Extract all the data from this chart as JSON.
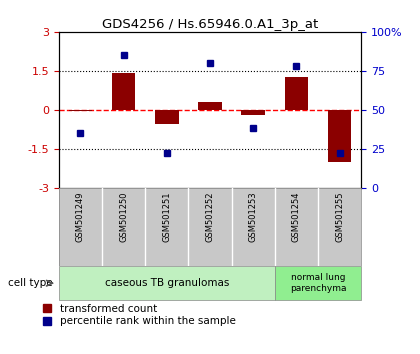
{
  "title": "GDS4256 / Hs.65946.0.A1_3p_at",
  "samples": [
    "GSM501249",
    "GSM501250",
    "GSM501251",
    "GSM501252",
    "GSM501253",
    "GSM501254",
    "GSM501255"
  ],
  "red_bars": [
    -0.05,
    1.4,
    -0.55,
    0.3,
    -0.2,
    1.25,
    -2.0
  ],
  "blue_dots": [
    35,
    85,
    22,
    80,
    38,
    78,
    22
  ],
  "ylim_left": [
    -3,
    3
  ],
  "ylim_right": [
    0,
    100
  ],
  "yticks_left": [
    -3,
    -1.5,
    0,
    1.5,
    3
  ],
  "yticks_right": [
    0,
    25,
    50,
    75,
    100
  ],
  "ytick_labels_right": [
    "0",
    "25",
    "50",
    "75",
    "100%"
  ],
  "hlines": [
    -1.5,
    0,
    1.5
  ],
  "hline_styles": [
    "dotted",
    "dashed",
    "dotted"
  ],
  "hline_colors": [
    "black",
    "red",
    "black"
  ],
  "bar_color": "#8B0000",
  "dot_color": "#00008B",
  "legend_red": "transformed count",
  "legend_blue": "percentile rank within the sample",
  "cell_type_label": "cell type",
  "background_color": "#ffffff",
  "plot_bg": "#ffffff",
  "tick_label_color_left": "#cc0000",
  "tick_label_color_right": "#0000cc",
  "group1_label": "caseous TB granulomas",
  "group1_color": "#c0f0c0",
  "group2_label": "normal lung\nparenchyma",
  "group2_color": "#90ee90",
  "group1_count": 5,
  "group2_count": 2
}
